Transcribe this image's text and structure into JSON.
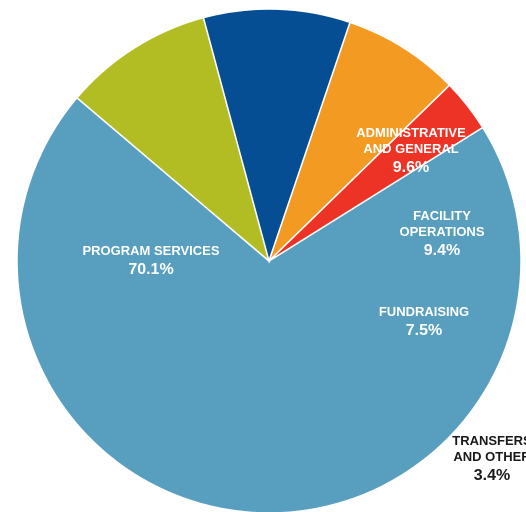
{
  "chart_data": {
    "type": "pie",
    "title": "",
    "slices": [
      {
        "name_lines": [
          "PROGRAM SERVICES"
        ],
        "value": 70.1,
        "label": "70.1%",
        "color": "#579ebf"
      },
      {
        "name_lines": [
          "ADMINISTRATIVE",
          "AND GENERAL"
        ],
        "value": 9.6,
        "label": "9.6%",
        "color": "#b2bd24"
      },
      {
        "name_lines": [
          "FACILITY",
          "OPERATIONS"
        ],
        "value": 9.4,
        "label": "9.4%",
        "color": "#054e93"
      },
      {
        "name_lines": [
          "FUNDRAISING"
        ],
        "value": 7.5,
        "label": "7.5%",
        "color": "#f39a23"
      },
      {
        "name_lines": [
          "TRANSFERS",
          "AND OTHER"
        ],
        "value": 3.4,
        "label": "3.4%",
        "color": "#ed3226"
      }
    ],
    "labels_inside": true,
    "legend": "none"
  }
}
